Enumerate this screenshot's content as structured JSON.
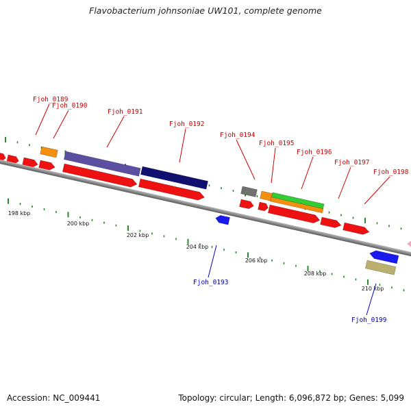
{
  "title": "Flavobacterium johnsoniae UW101, complete genome",
  "accession_label": "Accession: NC_009441",
  "topology_label": "Topology: circular; Length: 6,096,872 bp; Genes: 5,099",
  "axis_ticks": [
    "198 kbp",
    "200 kbp",
    "202 kbp",
    "204 kbp",
    "206 kbp",
    "208 kbp",
    "210 kbp"
  ],
  "gene_labels": [
    {
      "name": "Fjoh_0189",
      "color": "#cc0000"
    },
    {
      "name": "Fjoh_0190",
      "color": "#cc0000"
    },
    {
      "name": "Fjoh_0191",
      "color": "#cc0000"
    },
    {
      "name": "Fjoh_0192",
      "color": "#cc0000"
    },
    {
      "name": "Fjoh_0193",
      "color": "#0000bb"
    },
    {
      "name": "Fjoh_0194",
      "color": "#cc0000"
    },
    {
      "name": "Fjoh_0195",
      "color": "#cc0000"
    },
    {
      "name": "Fjoh_0196",
      "color": "#cc0000"
    },
    {
      "name": "Fjoh_0197",
      "color": "#cc0000"
    },
    {
      "name": "Fjoh_0198",
      "color": "#cc0000"
    },
    {
      "name": "Fjoh_0199",
      "color": "#0000bb"
    }
  ],
  "colors": {
    "backbone": "#8a8a8a",
    "gene_red": "#ee1111",
    "gene_blue": "#1a1aee",
    "orange": "#f39010",
    "purple": "#5a4fa0",
    "navy": "#101070",
    "green": "#33cc33",
    "gray": "#707070",
    "khaki": "#bbb070",
    "pink": "#f3a6c8",
    "tick_green": "#2a8a2a"
  }
}
